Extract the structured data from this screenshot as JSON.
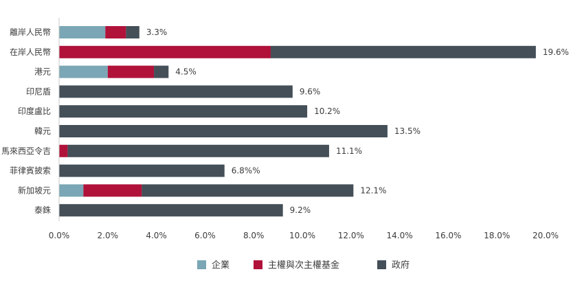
{
  "chart_data": {
    "type": "bar",
    "orientation": "horizontal",
    "stacked": true,
    "categories": [
      "離岸人民幣",
      "在岸人民幣",
      "港元",
      "印尼盾",
      "印度盧比",
      "韓元",
      "馬來西亞令吉",
      "菲律賓披索",
      "新加坡元",
      "泰銖"
    ],
    "series": [
      {
        "name": "企業",
        "color": "#7aa6b5",
        "values": [
          1.9,
          0,
          2.0,
          0,
          0,
          0,
          0,
          0,
          1.0,
          0
        ]
      },
      {
        "name": "主權與次主權基金",
        "color": "#b0123a",
        "values": [
          0.85,
          8.7,
          1.9,
          0,
          0,
          0,
          0.35,
          0,
          2.4,
          0
        ]
      },
      {
        "name": "政府",
        "color": "#444f58",
        "values": [
          0.55,
          10.9,
          0.6,
          9.6,
          10.2,
          13.5,
          10.75,
          6.8,
          8.7,
          9.2
        ]
      }
    ],
    "data_labels": [
      "3.3%",
      "19.6%",
      "4.5%",
      "9.6%",
      "10.2%",
      "13.5%",
      "11.1%",
      "6.8%%",
      "12.1%",
      "9.2%"
    ],
    "totals": [
      3.3,
      19.6,
      4.5,
      9.6,
      10.2,
      13.5,
      11.1,
      6.8,
      12.1,
      9.2
    ],
    "x_ticks": [
      "0.0%",
      "2.0%",
      "4.0%",
      "6.0%",
      "8.0%",
      "10.0%",
      "12.0%",
      "14.0%",
      "16.0%",
      "18.0%",
      "20.0%"
    ],
    "xlim": [
      0,
      20
    ],
    "grid": false,
    "legend_position": "bottom-center",
    "title": "",
    "xlabel": "",
    "ylabel": ""
  }
}
